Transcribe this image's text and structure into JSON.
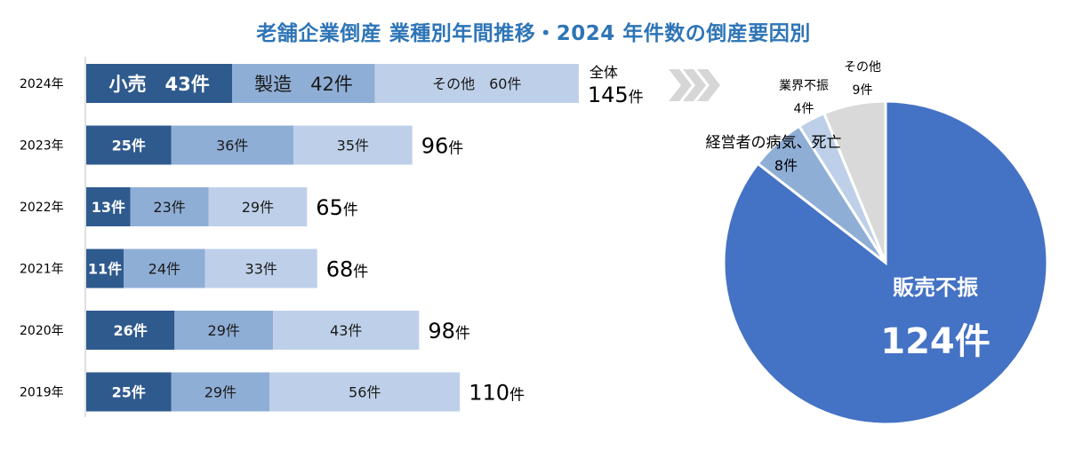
{
  "title": "老舗企業倒産 業種別年間推移・2024 年件数の倒産要因別",
  "chart_data": [
    {
      "type": "bar",
      "orientation": "horizontal",
      "stacked": true,
      "categories": [
        "2024年",
        "2023年",
        "2022年",
        "2021年",
        "2020年",
        "2019年"
      ],
      "series": [
        {
          "name": "小売",
          "values": [
            43,
            25,
            13,
            11,
            26,
            25
          ],
          "color": "#2f5a8e"
        },
        {
          "name": "製造",
          "values": [
            42,
            36,
            23,
            24,
            29,
            29
          ],
          "color": "#8faed6"
        },
        {
          "name": "その他",
          "values": [
            60,
            35,
            29,
            33,
            43,
            56
          ],
          "color": "#bed0e9"
        }
      ],
      "segment_labels": [
        [
          "小売　43件",
          "製造　42件",
          "その他　60件"
        ],
        [
          "25件",
          "36件",
          "35件"
        ],
        [
          "13件",
          "23件",
          "29件"
        ],
        [
          "11件",
          "24件",
          "33件"
        ],
        [
          "26件",
          "29件",
          "43件"
        ],
        [
          "25件",
          "29件",
          "56件"
        ]
      ],
      "total_prefix": "全体",
      "totals": [
        145,
        96,
        65,
        68,
        98,
        110
      ],
      "total_unit": "件"
    },
    {
      "type": "pie",
      "slices": [
        {
          "label": "販売不振",
          "value": 124,
          "value_label": "124件",
          "color": "#4472c4"
        },
        {
          "label": "経営者の病気、死亡",
          "value": 8,
          "value_label": "8件",
          "color": "#8faed6"
        },
        {
          "label": "業界不振",
          "value": 4,
          "value_label": "4件",
          "color": "#bed0e9"
        },
        {
          "label": "その他",
          "value": 9,
          "value_label": "9件",
          "color": "#d9d9d9"
        }
      ]
    }
  ]
}
